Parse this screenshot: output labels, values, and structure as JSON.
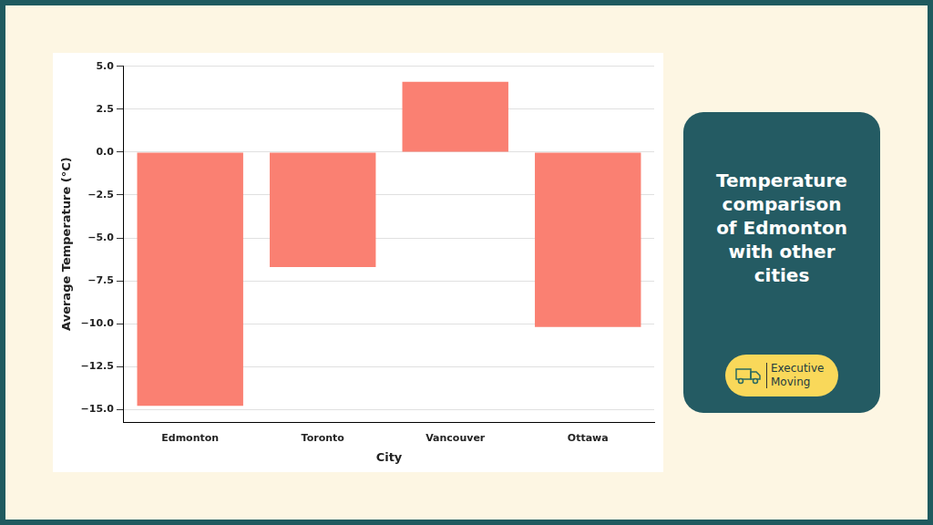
{
  "chart_data": {
    "type": "bar",
    "x_label": "City",
    "y_label": "Average Temperature (°C)",
    "categories": [
      "Edmonton",
      "Toronto",
      "Vancouver",
      "Ottawa"
    ],
    "values": [
      -14.8,
      -6.7,
      4.1,
      -10.2
    ],
    "color": "#fa8072",
    "ylim": [
      -15.75,
      5.05
    ],
    "yticks": [
      {
        "value": -15,
        "label": "−15.0"
      },
      {
        "value": -12.5,
        "label": "−12.5"
      },
      {
        "value": -10,
        "label": "−10.0"
      },
      {
        "value": -7.5,
        "label": "−7.5"
      },
      {
        "value": -5,
        "label": "−5.0"
      },
      {
        "value": -2.5,
        "label": "−2.5"
      },
      {
        "value": 0,
        "label": "0.0"
      },
      {
        "value": 2.5,
        "label": "2.5"
      },
      {
        "value": 5,
        "label": "5.0"
      }
    ],
    "grid": true
  },
  "side_panel": {
    "text": "Temperature comparison of Edmonton with other cities",
    "logo": [
      "Executive",
      "Moving"
    ]
  }
}
